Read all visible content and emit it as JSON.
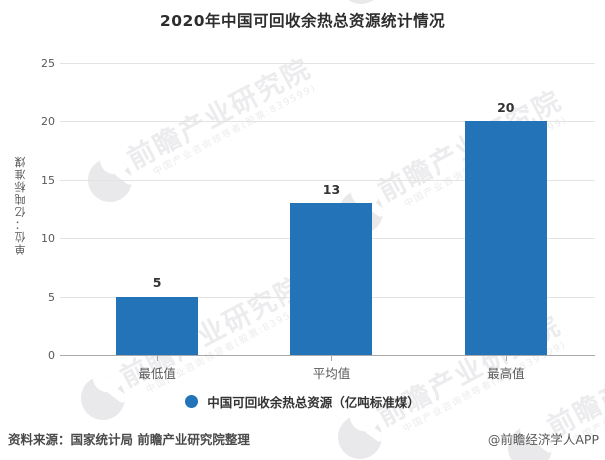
{
  "page": {
    "watermark": {
      "logo": "qianzhan-bird-logo",
      "main": "前瞻产业研究院",
      "sub": "中国产业咨询领导者(股票:839599)"
    },
    "footer": {
      "source": "资料来源：国家统计局 前瞻产业研究院整理",
      "credit": "@前瞻经济学人APP"
    }
  },
  "chart_data": {
    "type": "bar",
    "title": "2020年中国可回收余热总资源统计情况",
    "categories": [
      "最低值",
      "平均值",
      "最高值"
    ],
    "values": [
      5,
      13,
      20
    ],
    "data_labels": [
      "5",
      "13",
      "20"
    ],
    "series": [
      {
        "name": "中国可回收余热总资源（亿吨标准煤）",
        "values": [
          5,
          13,
          20
        ]
      }
    ],
    "xlabel": "",
    "ylabel": "单位：亿吨标准煤",
    "ylim": [
      0,
      25
    ],
    "yticks": [
      0,
      5,
      10,
      15,
      20,
      25
    ],
    "grid": "horizontal",
    "legend_position": "bottom",
    "bar_color": "#2373B8",
    "colors": {
      "bar": "#2373B8",
      "title_text": "#2d2d2d",
      "axis_text": "#595959",
      "gridline": "#e3e3e3"
    }
  }
}
